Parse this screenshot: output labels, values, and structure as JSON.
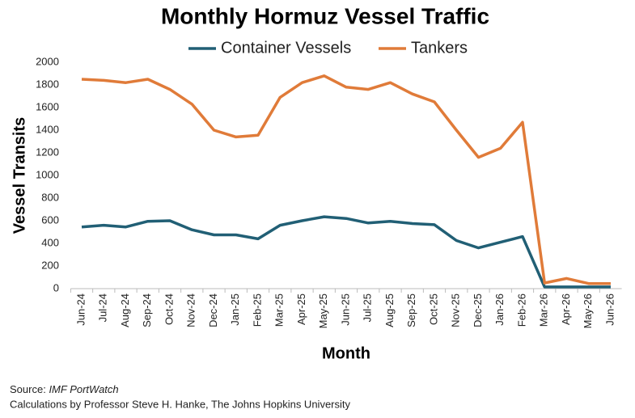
{
  "chart_data": {
    "type": "line",
    "title": "Monthly Hormuz Vessel Traffic",
    "x_label": "Month",
    "y_label": "Vessel Transits",
    "categories": [
      "Jun-24",
      "Jul-24",
      "Aug-24",
      "Sep-24",
      "Oct-24",
      "Nov-24",
      "Dec-24",
      "Jan-25",
      "Feb-25",
      "Mar-25",
      "Apr-25",
      "May-25",
      "Jun-25",
      "Jul-25",
      "Aug-25",
      "Sep-25",
      "Oct-25",
      "Nov-25",
      "Dec-25",
      "Jan-26",
      "Feb-26",
      "Mar-26",
      "Apr-26",
      "May-26",
      "Jun-26"
    ],
    "series": [
      {
        "name": "Container Vessels",
        "color": "#215f75",
        "values": [
          545,
          560,
          545,
          595,
          600,
          520,
          475,
          475,
          440,
          560,
          600,
          635,
          620,
          580,
          595,
          575,
          565,
          425,
          360,
          410,
          460,
          15,
          15,
          15,
          15
        ]
      },
      {
        "name": "Tankers",
        "color": "#e07b39",
        "values": [
          1850,
          1840,
          1820,
          1850,
          1760,
          1630,
          1400,
          1340,
          1355,
          1690,
          1820,
          1880,
          1780,
          1760,
          1820,
          1720,
          1650,
          1400,
          1160,
          1240,
          1470,
          50,
          90,
          45,
          45
        ]
      }
    ],
    "ylim": [
      0,
      2000
    ],
    "yticks": [
      0,
      200,
      400,
      600,
      800,
      1000,
      1200,
      1400,
      1600,
      1800,
      2000
    ],
    "grid": false,
    "legend": "top"
  },
  "footer": {
    "source_prefix": "Source:",
    "source_name": "IMF PortWatch",
    "credit": "Calculations by Professor Steve H. Hanke, The Johns Hopkins University"
  }
}
